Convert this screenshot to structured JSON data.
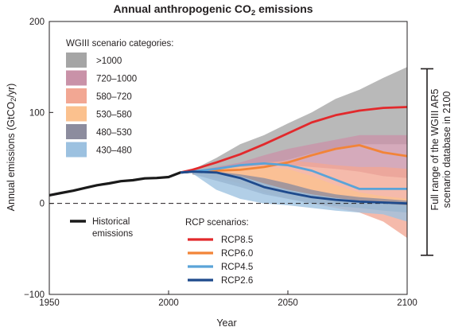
{
  "chart_data": {
    "type": "area",
    "title_prefix": "Annual anthropogenic CO",
    "title_sub": "2",
    "title_suffix": " emissions",
    "xlabel": "Year",
    "ylabel_prefix": "Annual emissions (GtCO",
    "ylabel_sub": "2",
    "ylabel_suffix": "/yr)",
    "xlim": [
      1950,
      2100
    ],
    "ylim": [
      -100,
      200
    ],
    "xticks": [
      "1950",
      "2000",
      "2050",
      "2100"
    ],
    "yticks": [
      "200",
      "100",
      "0",
      "−100"
    ],
    "ytick_values": [
      200,
      100,
      0,
      -100
    ],
    "xtick_values": [
      1950,
      2000,
      2050,
      2100
    ],
    "grid": false,
    "zero_line": "dashed",
    "scenario_legend_title": "WGIII scenario categories:",
    "scenario_bands": [
      {
        "name": ">1000",
        "color": "#a5a5a5",
        "x": [
          2010,
          2020,
          2030,
          2040,
          2050,
          2060,
          2070,
          2080,
          2090,
          2100
        ],
        "upper": [
          37,
          50,
          65,
          75,
          88,
          100,
          115,
          125,
          138,
          150
        ],
        "lower": [
          32,
          38,
          40,
          42,
          48,
          55,
          60,
          65,
          65,
          65
        ]
      },
      {
        "name": "720–1000",
        "color": "#c992a8",
        "x": [
          2010,
          2020,
          2030,
          2040,
          2050,
          2060,
          2070,
          2080,
          2090,
          2100
        ],
        "upper": [
          35,
          40,
          45,
          53,
          60,
          65,
          70,
          75,
          75,
          75
        ],
        "lower": [
          33,
          35,
          40,
          42,
          42,
          40,
          38,
          35,
          30,
          28
        ]
      },
      {
        "name": "580–720",
        "color": "#f2a793",
        "x": [
          2010,
          2020,
          2030,
          2040,
          2050,
          2060,
          2070,
          2080,
          2090,
          2100
        ],
        "upper": [
          35,
          38,
          42,
          45,
          47,
          45,
          42,
          40,
          40,
          38
        ],
        "lower": [
          32,
          28,
          22,
          15,
          8,
          0,
          -5,
          -10,
          -20,
          -38
        ]
      },
      {
        "name": "530–580",
        "color": "#fbc18e",
        "x": [
          2010,
          2020,
          2030,
          2040,
          2050,
          2060,
          2070,
          2080,
          2090,
          2100
        ],
        "upper": [
          35,
          38,
          40,
          40,
          38,
          30,
          20,
          12,
          8,
          5
        ],
        "lower": [
          32,
          30,
          22,
          12,
          5,
          0,
          -3,
          -5,
          -8,
          -10
        ]
      },
      {
        "name": "480–530",
        "color": "#8c8c9e",
        "x": [
          2010,
          2020,
          2030,
          2040,
          2050,
          2060,
          2070,
          2080,
          2090,
          2100
        ],
        "upper": [
          35,
          35,
          32,
          28,
          22,
          15,
          10,
          7,
          5,
          3
        ],
        "lower": [
          32,
          25,
          18,
          10,
          5,
          0,
          -3,
          -5,
          -8,
          -10
        ]
      },
      {
        "name": "430–480",
        "color": "#9cc1e0",
        "x": [
          2010,
          2020,
          2030,
          2040,
          2050,
          2060,
          2070,
          2080,
          2090,
          2100
        ],
        "upper": [
          35,
          34,
          30,
          22,
          15,
          10,
          6,
          3,
          0,
          -2
        ],
        "lower": [
          33,
          15,
          5,
          0,
          -2,
          -5,
          -8,
          -10,
          -12,
          -20
        ]
      }
    ],
    "historical": {
      "name_line1": "Historical",
      "name_line2": "emissions",
      "color": "#1a1a1a",
      "x": [
        1950,
        1955,
        1960,
        1965,
        1970,
        1975,
        1980,
        1985,
        1990,
        1995,
        2000,
        2005,
        2010
      ],
      "y": [
        9,
        11.5,
        14,
        17,
        20,
        22,
        24.5,
        25.5,
        27.5,
        28,
        29,
        34,
        35
      ]
    },
    "rcp_legend_title": "RCP scenarios:",
    "rcp_series": [
      {
        "name": "RCP8.5",
        "color": "#e2292c",
        "x": [
          2005,
          2010,
          2020,
          2030,
          2040,
          2050,
          2060,
          2070,
          2080,
          2090,
          2100
        ],
        "y": [
          34,
          37,
          45,
          54,
          65,
          77,
          89,
          97,
          102,
          105,
          106
        ]
      },
      {
        "name": "RCP6.0",
        "color": "#f28438",
        "x": [
          2005,
          2010,
          2020,
          2030,
          2040,
          2050,
          2060,
          2070,
          2080,
          2090,
          2100
        ],
        "y": [
          34,
          35,
          36,
          37,
          40,
          45,
          53,
          60,
          64,
          56,
          52
        ]
      },
      {
        "name": "RCP4.5",
        "color": "#5aa3d8",
        "x": [
          2005,
          2010,
          2020,
          2030,
          2040,
          2050,
          2060,
          2070,
          2080,
          2090,
          2100
        ],
        "y": [
          34,
          35,
          38,
          42,
          44,
          42,
          36,
          26,
          16,
          16,
          16
        ]
      },
      {
        "name": "RCP2.6",
        "color": "#1e4a8c",
        "x": [
          2005,
          2010,
          2020,
          2030,
          2040,
          2050,
          2060,
          2070,
          2080,
          2090,
          2100
        ],
        "y": [
          34,
          35,
          34,
          28,
          18,
          12,
          7,
          4,
          2,
          1,
          0
        ]
      }
    ],
    "range_bracket": {
      "from": 148,
      "to": -57,
      "label_line1": "Full range of the WGIII AR5",
      "label_line2": "scenario database in 2100"
    }
  }
}
